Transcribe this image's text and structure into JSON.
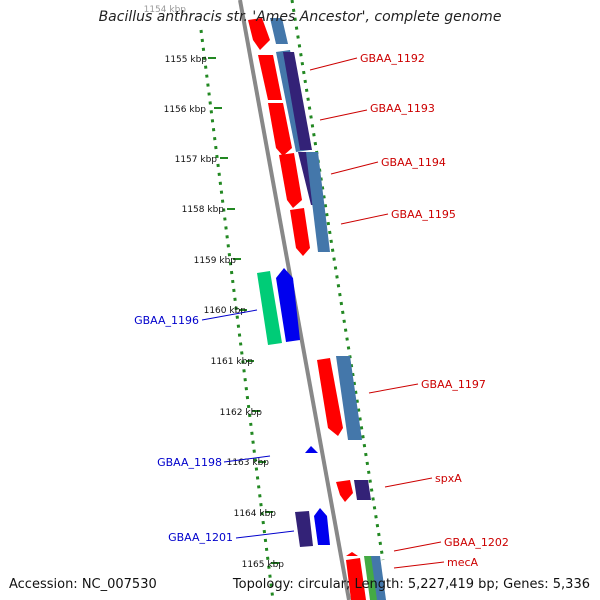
{
  "title": "Bacillus anthracis str. 'Ames Ancestor', complete genome",
  "accession": "Accession: NC_007530",
  "summary": "Topology: circular; Length: 5,227,419 bp; Genes: 5,336",
  "colors": {
    "forward_feature": "#ff0000",
    "reverse_feature": "#0000ee",
    "orf_reverse": "#4477aa",
    "orf_forward": "#332277",
    "green_feature": "#00cc77",
    "backbone": "#888888",
    "tick": "#228822",
    "label_red": "#cc0000",
    "label_blue": "#0000cc"
  },
  "ticks": [
    {
      "label": "1154 kbp",
      "kbp": 1154
    },
    {
      "label": "1155 kbp",
      "kbp": 1155
    },
    {
      "label": "1156 kbp",
      "kbp": 1156
    },
    {
      "label": "1157 kbp",
      "kbp": 1157
    },
    {
      "label": "1158 kbp",
      "kbp": 1158
    },
    {
      "label": "1159 kbp",
      "kbp": 1159
    },
    {
      "label": "1160 kbp",
      "kbp": 1160
    },
    {
      "label": "1161 kbp",
      "kbp": 1161
    },
    {
      "label": "1162 kbp",
      "kbp": 1162
    },
    {
      "label": "1163 kbp",
      "kbp": 1163
    },
    {
      "label": "1164 kbp",
      "kbp": 1164
    },
    {
      "label": "1165 kbp",
      "kbp": 1165
    }
  ],
  "features": [
    {
      "label": "GBAA_1192",
      "strand": "forward"
    },
    {
      "label": "GBAA_1193",
      "strand": "forward"
    },
    {
      "label": "GBAA_1194",
      "strand": "forward"
    },
    {
      "label": "GBAA_1195",
      "strand": "forward"
    },
    {
      "label": "GBAA_1196",
      "strand": "reverse"
    },
    {
      "label": "GBAA_1197",
      "strand": "forward"
    },
    {
      "label": "GBAA_1198",
      "strand": "reverse"
    },
    {
      "label": "spxA",
      "strand": "forward"
    },
    {
      "label": "GBAA_1201",
      "strand": "reverse"
    },
    {
      "label": "GBAA_1202",
      "strand": "forward"
    },
    {
      "label": "mecA",
      "strand": "forward"
    }
  ]
}
